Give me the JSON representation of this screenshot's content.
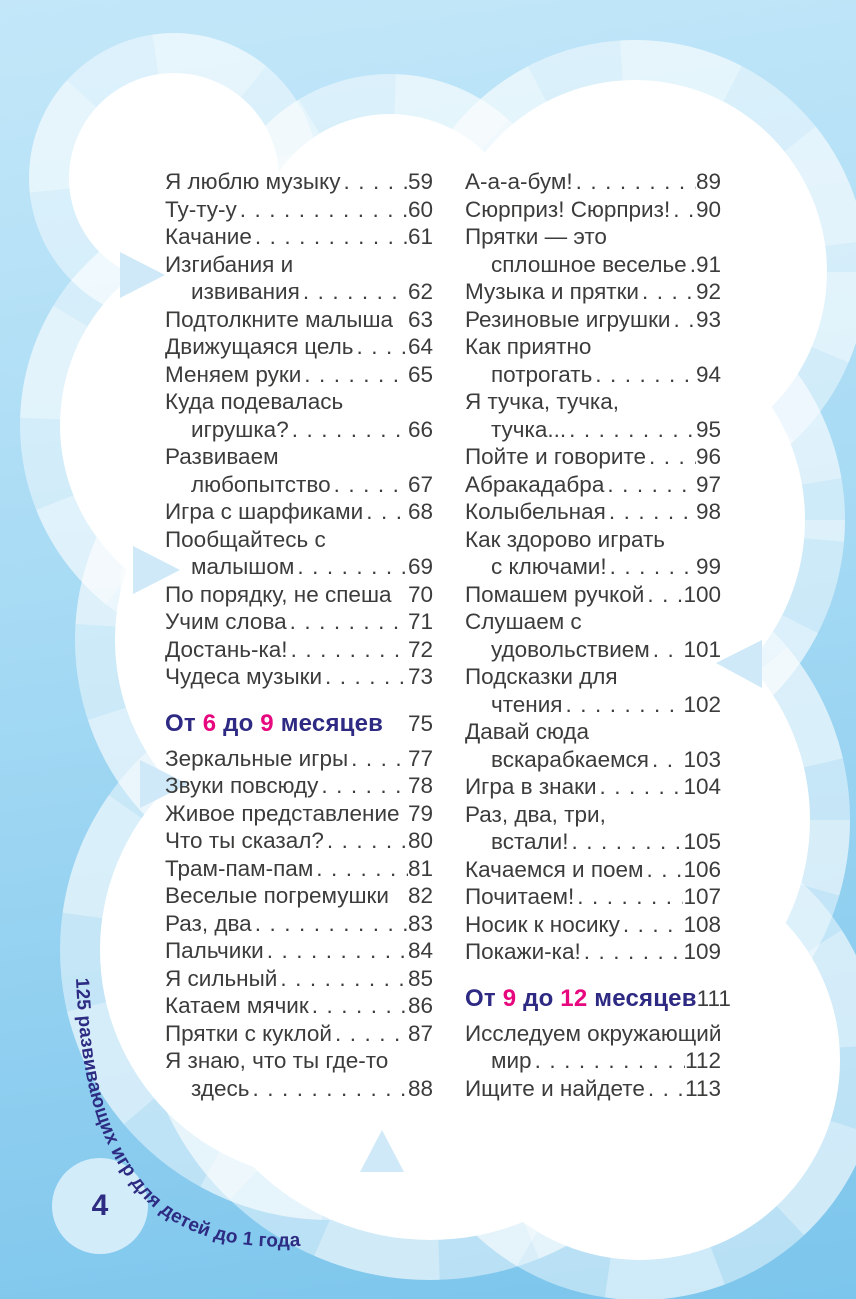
{
  "page": {
    "number": "4",
    "side_text": "125 развивающих игр для детей до 1 года"
  },
  "colors": {
    "header_blue": "#2e2a84",
    "accent_pink": "#e7077e",
    "body_text": "#3c3c3b",
    "side_text_color": "#2d2b82",
    "bg_top": "#c3e7f9",
    "bg_bottom": "#7cc5ec"
  },
  "toc": {
    "left": [
      {
        "title": "Я люблю музыку",
        "page": "59"
      },
      {
        "title": "Ту-ту-у",
        "page": "60"
      },
      {
        "title": "Качание",
        "page": "61"
      },
      {
        "pre": "Изгибания и",
        "title": "извивания",
        "page": "62"
      },
      {
        "title": "Подтолкните малыша",
        "page": "63",
        "dots": false
      },
      {
        "title": "Движущаяся цель",
        "page": "64"
      },
      {
        "title": "Меняем руки",
        "page": "65"
      },
      {
        "pre": "Куда подевалась",
        "title": "игрушка?",
        "page": "66"
      },
      {
        "pre": "Развиваем",
        "title": "любопытство",
        "page": "67"
      },
      {
        "title": "Игра с шарфиками",
        "page": "68"
      },
      {
        "pre": "Пообщайтесь с",
        "title": "малышом",
        "page": "69"
      },
      {
        "title": "По порядку, не спеша",
        "page": "70",
        "dots": false
      },
      {
        "title": "Учим слова",
        "page": "71"
      },
      {
        "title": "Достань-ка!",
        "page": "72"
      },
      {
        "title": "Чудеса музыки",
        "page": "73"
      },
      {
        "section": {
          "parts": [
            [
              "От ",
              "b"
            ],
            [
              "6",
              "p"
            ],
            [
              " до ",
              "b"
            ],
            [
              "9",
              "p"
            ],
            [
              " месяцев",
              "b"
            ]
          ],
          "page": "75"
        }
      },
      {
        "title": "Зеркальные игры",
        "page": "77"
      },
      {
        "title": "Звуки повсюду",
        "page": "78"
      },
      {
        "title": "Живое представление",
        "page": "79",
        "dots": false
      },
      {
        "title": "Что ты сказал?",
        "page": "80"
      },
      {
        "title": "Трам-пам-пам",
        "page": "81"
      },
      {
        "title": "Веселые погремушки",
        "page": "82",
        "dots": false
      },
      {
        "title": "Раз, два",
        "page": "83"
      },
      {
        "title": "Пальчики",
        "page": "84"
      },
      {
        "title": "Я сильный",
        "page": "85"
      },
      {
        "title": "Катаем мячик",
        "page": "86"
      },
      {
        "title": "Прятки с куклой",
        "page": "87"
      },
      {
        "pre": "Я знаю, что ты где-то",
        "title": "здесь",
        "page": "88"
      }
    ],
    "right": [
      {
        "title": "А-а-а-бум!",
        "page": "89"
      },
      {
        "title": "Сюрприз! Сюрприз!",
        "page": "90"
      },
      {
        "pre": "Прятки — это",
        "title": "сплошное веселье",
        "page": "91"
      },
      {
        "title": "Музыка и прятки",
        "page": "92"
      },
      {
        "title": "Резиновые игрушки",
        "page": "93"
      },
      {
        "pre": "Как приятно",
        "title": "потрогать",
        "page": "94"
      },
      {
        "pre": "Я тучка, тучка,",
        "title": "тучка...",
        "page": "95"
      },
      {
        "title": "Пойте и говорите",
        "page": "96"
      },
      {
        "title": "Абракадабра",
        "page": "97"
      },
      {
        "title": "Колыбельная",
        "page": "98"
      },
      {
        "pre": "Как здорово играть",
        "title": "с ключами!",
        "page": "99"
      },
      {
        "title": "Помашем ручкой",
        "page": "100"
      },
      {
        "pre": "Слушаем с",
        "title": "удовольствием",
        "page": "101"
      },
      {
        "pre": "Подсказки для",
        "title": "чтения",
        "page": "102"
      },
      {
        "pre": "Давай сюда",
        "title": "вскарабкаемся",
        "page": "103"
      },
      {
        "title": "Игра в знаки",
        "page": "104"
      },
      {
        "pre": "Раз, два, три,",
        "title": "встали!",
        "page": "105"
      },
      {
        "title": "Качаемся и поем",
        "page": "106"
      },
      {
        "title": "Почитаем!",
        "page": "107"
      },
      {
        "title": "Носик к носику",
        "page": "108"
      },
      {
        "title": "Покажи-ка!",
        "page": "109"
      },
      {
        "section": {
          "parts": [
            [
              "От ",
              "b"
            ],
            [
              "9",
              "p"
            ],
            [
              " до ",
              "b"
            ],
            [
              "12",
              "p"
            ],
            [
              " месяцев",
              "b"
            ]
          ],
          "page": "111"
        }
      },
      {
        "pre": "Исследуем окружающий",
        "title": "мир",
        "page": "112"
      },
      {
        "title": "Ищите и найдете",
        "page": "113"
      }
    ]
  }
}
